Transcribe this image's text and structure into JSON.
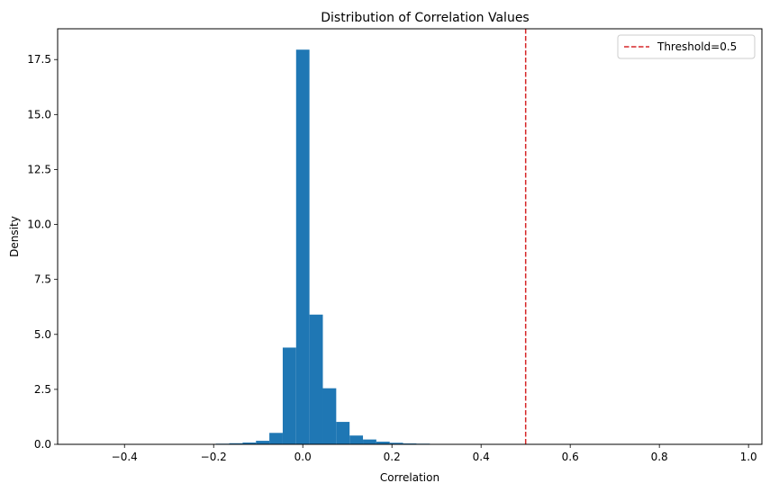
{
  "chart_data": {
    "type": "bar",
    "title": "Distribution of Correlation Values",
    "xlabel": "Correlation",
    "ylabel": "Density",
    "xlim": [
      -0.55,
      1.03
    ],
    "ylim": [
      0,
      18.9
    ],
    "x_ticks": [
      -0.4,
      -0.2,
      0.0,
      0.2,
      0.4,
      0.6,
      0.8,
      1.0
    ],
    "x_tick_labels": [
      "−0.4",
      "−0.2",
      "0.0",
      "0.2",
      "0.4",
      "0.6",
      "0.8",
      "1.0"
    ],
    "y_ticks": [
      0,
      2.5,
      5.0,
      7.5,
      10.0,
      12.5,
      15.0,
      17.5
    ],
    "y_tick_labels": [
      "0.0",
      "2.5",
      "5.0",
      "7.5",
      "10.0",
      "12.5",
      "15.0",
      "17.5"
    ],
    "bar_color": "#1f77b4",
    "bin_width": 0.03,
    "bins_start": [
      -0.225,
      -0.195,
      -0.165,
      -0.135,
      -0.105,
      -0.075,
      -0.045,
      -0.015,
      0.015,
      0.045,
      0.075,
      0.105,
      0.135,
      0.165,
      0.195,
      0.225,
      0.255,
      0.285,
      0.315
    ],
    "densities": [
      0.01,
      0.03,
      0.05,
      0.08,
      0.16,
      0.52,
      4.4,
      17.95,
      5.9,
      2.55,
      1.02,
      0.4,
      0.22,
      0.12,
      0.07,
      0.04,
      0.03,
      0.02,
      0.01
    ],
    "threshold": {
      "label": "Threshold=0.5",
      "value": 0.5,
      "color": "#d62728",
      "style": "dashed"
    },
    "legend": {
      "position": "top-right"
    }
  }
}
